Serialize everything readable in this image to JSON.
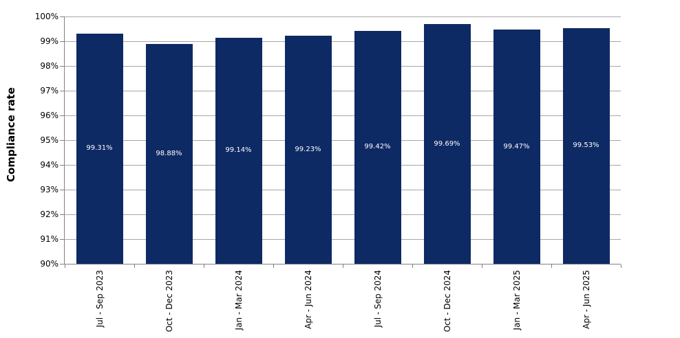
{
  "chart_data": {
    "type": "bar",
    "title": "",
    "xlabel": "",
    "ylabel": "Compliance rate",
    "categories": [
      "Jul - Sep 2023",
      "Oct - Dec 2023",
      "Jan - Mar 2024",
      "Apr - Jun 2024",
      "Jul - Sep 2024",
      "Oct - Dec 2024",
      "Jan - Mar 2025",
      "Apr - Jun 2025"
    ],
    "values": [
      99.31,
      98.88,
      99.14,
      99.23,
      99.42,
      99.69,
      99.47,
      99.53
    ],
    "value_labels": [
      "99.31%",
      "98.88%",
      "99.14%",
      "99.23%",
      "99.42%",
      "99.69%",
      "99.47%",
      "99.53%"
    ],
    "y_tick_labels": [
      "100%",
      "99%",
      "98%",
      "97%",
      "96%",
      "95%",
      "94%",
      "93%",
      "92%",
      "91%",
      "90%"
    ],
    "ylim": [
      90,
      100
    ],
    "grid": "horizontal",
    "legend_position": "none",
    "value_label_position": "center-of-bar",
    "colors": {
      "bar_fill": "#0E2A64",
      "gridline": "#A6A6A6",
      "axis_line": "#808080",
      "value_label_text": "#FFFFFF",
      "tick_label_text": "#000000",
      "background": "#FFFFFF"
    }
  }
}
